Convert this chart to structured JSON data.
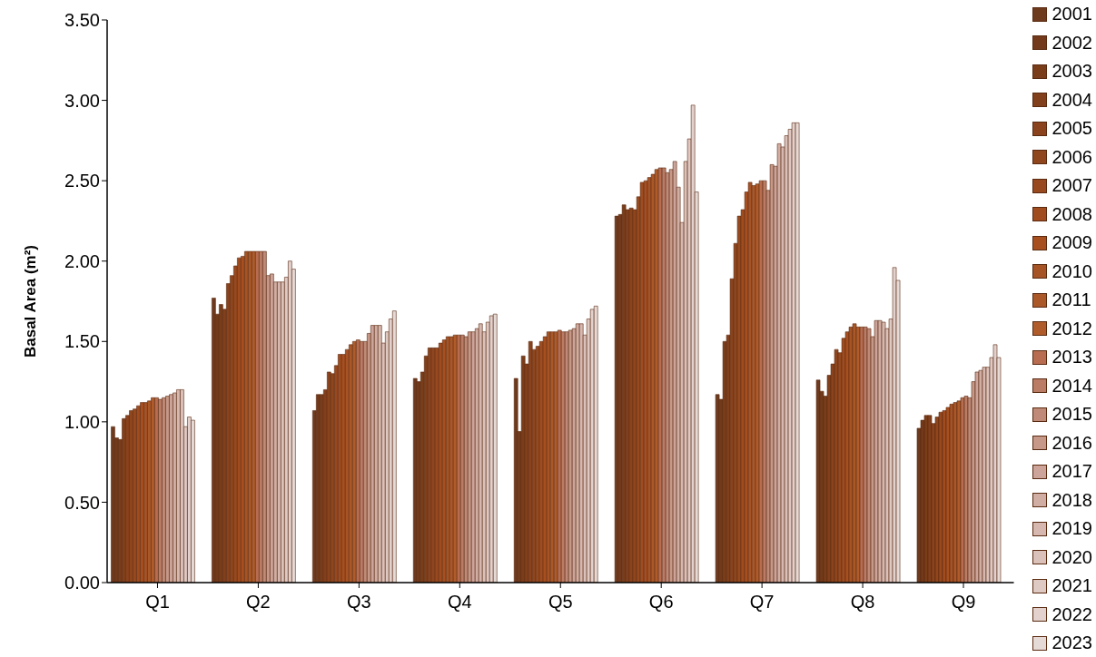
{
  "chart_data": {
    "type": "bar",
    "ylabel": "Basal Area (m²)",
    "categories": [
      "Q1",
      "Q2",
      "Q3",
      "Q4",
      "Q5",
      "Q6",
      "Q7",
      "Q8",
      "Q9"
    ],
    "ylim": [
      0,
      3.5
    ],
    "yticks": [
      {
        "value": 0,
        "label": "0.00"
      },
      {
        "value": 0.5,
        "label": "0.50"
      },
      {
        "value": 1,
        "label": "1.00"
      },
      {
        "value": 1.5,
        "label": "1.50"
      },
      {
        "value": 2,
        "label": "2.00"
      },
      {
        "value": 2.5,
        "label": "2.50"
      },
      {
        "value": 3,
        "label": "3.00"
      },
      {
        "value": 3.5,
        "label": "3.50"
      }
    ],
    "grid": false,
    "legend": "right",
    "series": [
      {
        "name": "2001",
        "color": "#6e3a1e",
        "values": [
          0.97,
          1.77,
          1.07,
          1.27,
          1.27,
          2.28,
          1.17,
          1.26,
          0.96
        ]
      },
      {
        "name": "2002",
        "color": "#723a1a",
        "values": [
          0.9,
          1.67,
          1.17,
          1.25,
          0.94,
          2.29,
          1.14,
          1.19,
          1.01
        ]
      },
      {
        "name": "2003",
        "color": "#7a3d1a",
        "values": [
          0.89,
          1.73,
          1.17,
          1.31,
          1.41,
          2.35,
          1.5,
          1.16,
          1.04
        ]
      },
      {
        "name": "2004",
        "color": "#823f1b",
        "values": [
          1.02,
          1.7,
          1.2,
          1.41,
          1.36,
          2.32,
          1.54,
          1.29,
          1.04
        ]
      },
      {
        "name": "2005",
        "color": "#8a431c",
        "values": [
          1.04,
          1.86,
          1.31,
          1.46,
          1.5,
          2.33,
          1.89,
          1.36,
          0.99
        ]
      },
      {
        "name": "2006",
        "color": "#90461d",
        "values": [
          1.07,
          1.91,
          1.3,
          1.46,
          1.45,
          2.32,
          2.11,
          1.45,
          1.03
        ]
      },
      {
        "name": "2007",
        "color": "#98491e",
        "values": [
          1.08,
          1.97,
          1.35,
          1.46,
          1.47,
          2.4,
          2.28,
          1.43,
          1.06
        ]
      },
      {
        "name": "2008",
        "color": "#a04c1f",
        "values": [
          1.1,
          2.02,
          1.42,
          1.49,
          1.5,
          2.49,
          2.32,
          1.52,
          1.07
        ]
      },
      {
        "name": "2009",
        "color": "#a84f20",
        "values": [
          1.12,
          2.03,
          1.42,
          1.51,
          1.53,
          2.5,
          2.43,
          1.56,
          1.09
        ]
      },
      {
        "name": "2010",
        "color": "#a65326",
        "values": [
          1.12,
          2.06,
          1.45,
          1.53,
          1.56,
          2.52,
          2.49,
          1.59,
          1.11
        ]
      },
      {
        "name": "2011",
        "color": "#ab5828",
        "values": [
          1.13,
          2.06,
          1.48,
          1.53,
          1.56,
          2.54,
          2.47,
          1.61,
          1.12
        ]
      },
      {
        "name": "2012",
        "color": "#b05c2a",
        "values": [
          1.15,
          2.06,
          1.5,
          1.54,
          1.56,
          2.57,
          2.48,
          1.59,
          1.13
        ]
      },
      {
        "name": "2013",
        "color": "#b86d50",
        "values": [
          1.15,
          2.06,
          1.51,
          1.54,
          1.57,
          2.58,
          2.5,
          1.59,
          1.15
        ]
      },
      {
        "name": "2014",
        "color": "#bb7c66",
        "values": [
          1.14,
          2.06,
          1.5,
          1.54,
          1.56,
          2.58,
          2.5,
          1.59,
          1.16
        ]
      },
      {
        "name": "2015",
        "color": "#bf8a78",
        "values": [
          1.15,
          2.06,
          1.5,
          1.53,
          1.56,
          2.55,
          2.44,
          1.58,
          1.15
        ]
      },
      {
        "name": "2016",
        "color": "#c69888",
        "values": [
          1.16,
          1.91,
          1.55,
          1.56,
          1.57,
          2.57,
          2.6,
          1.53,
          1.25
        ]
      },
      {
        "name": "2017",
        "color": "#cca49a",
        "values": [
          1.17,
          1.92,
          1.6,
          1.56,
          1.58,
          2.62,
          2.59,
          1.63,
          1.31
        ]
      },
      {
        "name": "2018",
        "color": "#d1aea4",
        "values": [
          1.18,
          1.87,
          1.6,
          1.58,
          1.61,
          2.46,
          2.73,
          1.63,
          1.32
        ]
      },
      {
        "name": "2019",
        "color": "#d6b8b0",
        "values": [
          1.2,
          1.87,
          1.6,
          1.61,
          1.61,
          2.24,
          2.71,
          1.62,
          1.34
        ]
      },
      {
        "name": "2020",
        "color": "#dac1ba",
        "values": [
          1.2,
          1.87,
          1.49,
          1.56,
          1.54,
          2.62,
          2.78,
          1.58,
          1.34
        ]
      },
      {
        "name": "2021",
        "color": "#dec9c3",
        "values": [
          0.97,
          1.9,
          1.56,
          1.62,
          1.64,
          2.76,
          2.82,
          1.64,
          1.4
        ]
      },
      {
        "name": "2022",
        "color": "#e2d1cd",
        "values": [
          1.03,
          2.0,
          1.64,
          1.66,
          1.7,
          2.97,
          2.86,
          1.96,
          1.48
        ]
      },
      {
        "name": "2023",
        "color": "#e6dad6",
        "values": [
          1.01,
          1.95,
          1.69,
          1.67,
          1.72,
          2.43,
          2.86,
          1.88,
          1.4
        ]
      }
    ]
  }
}
